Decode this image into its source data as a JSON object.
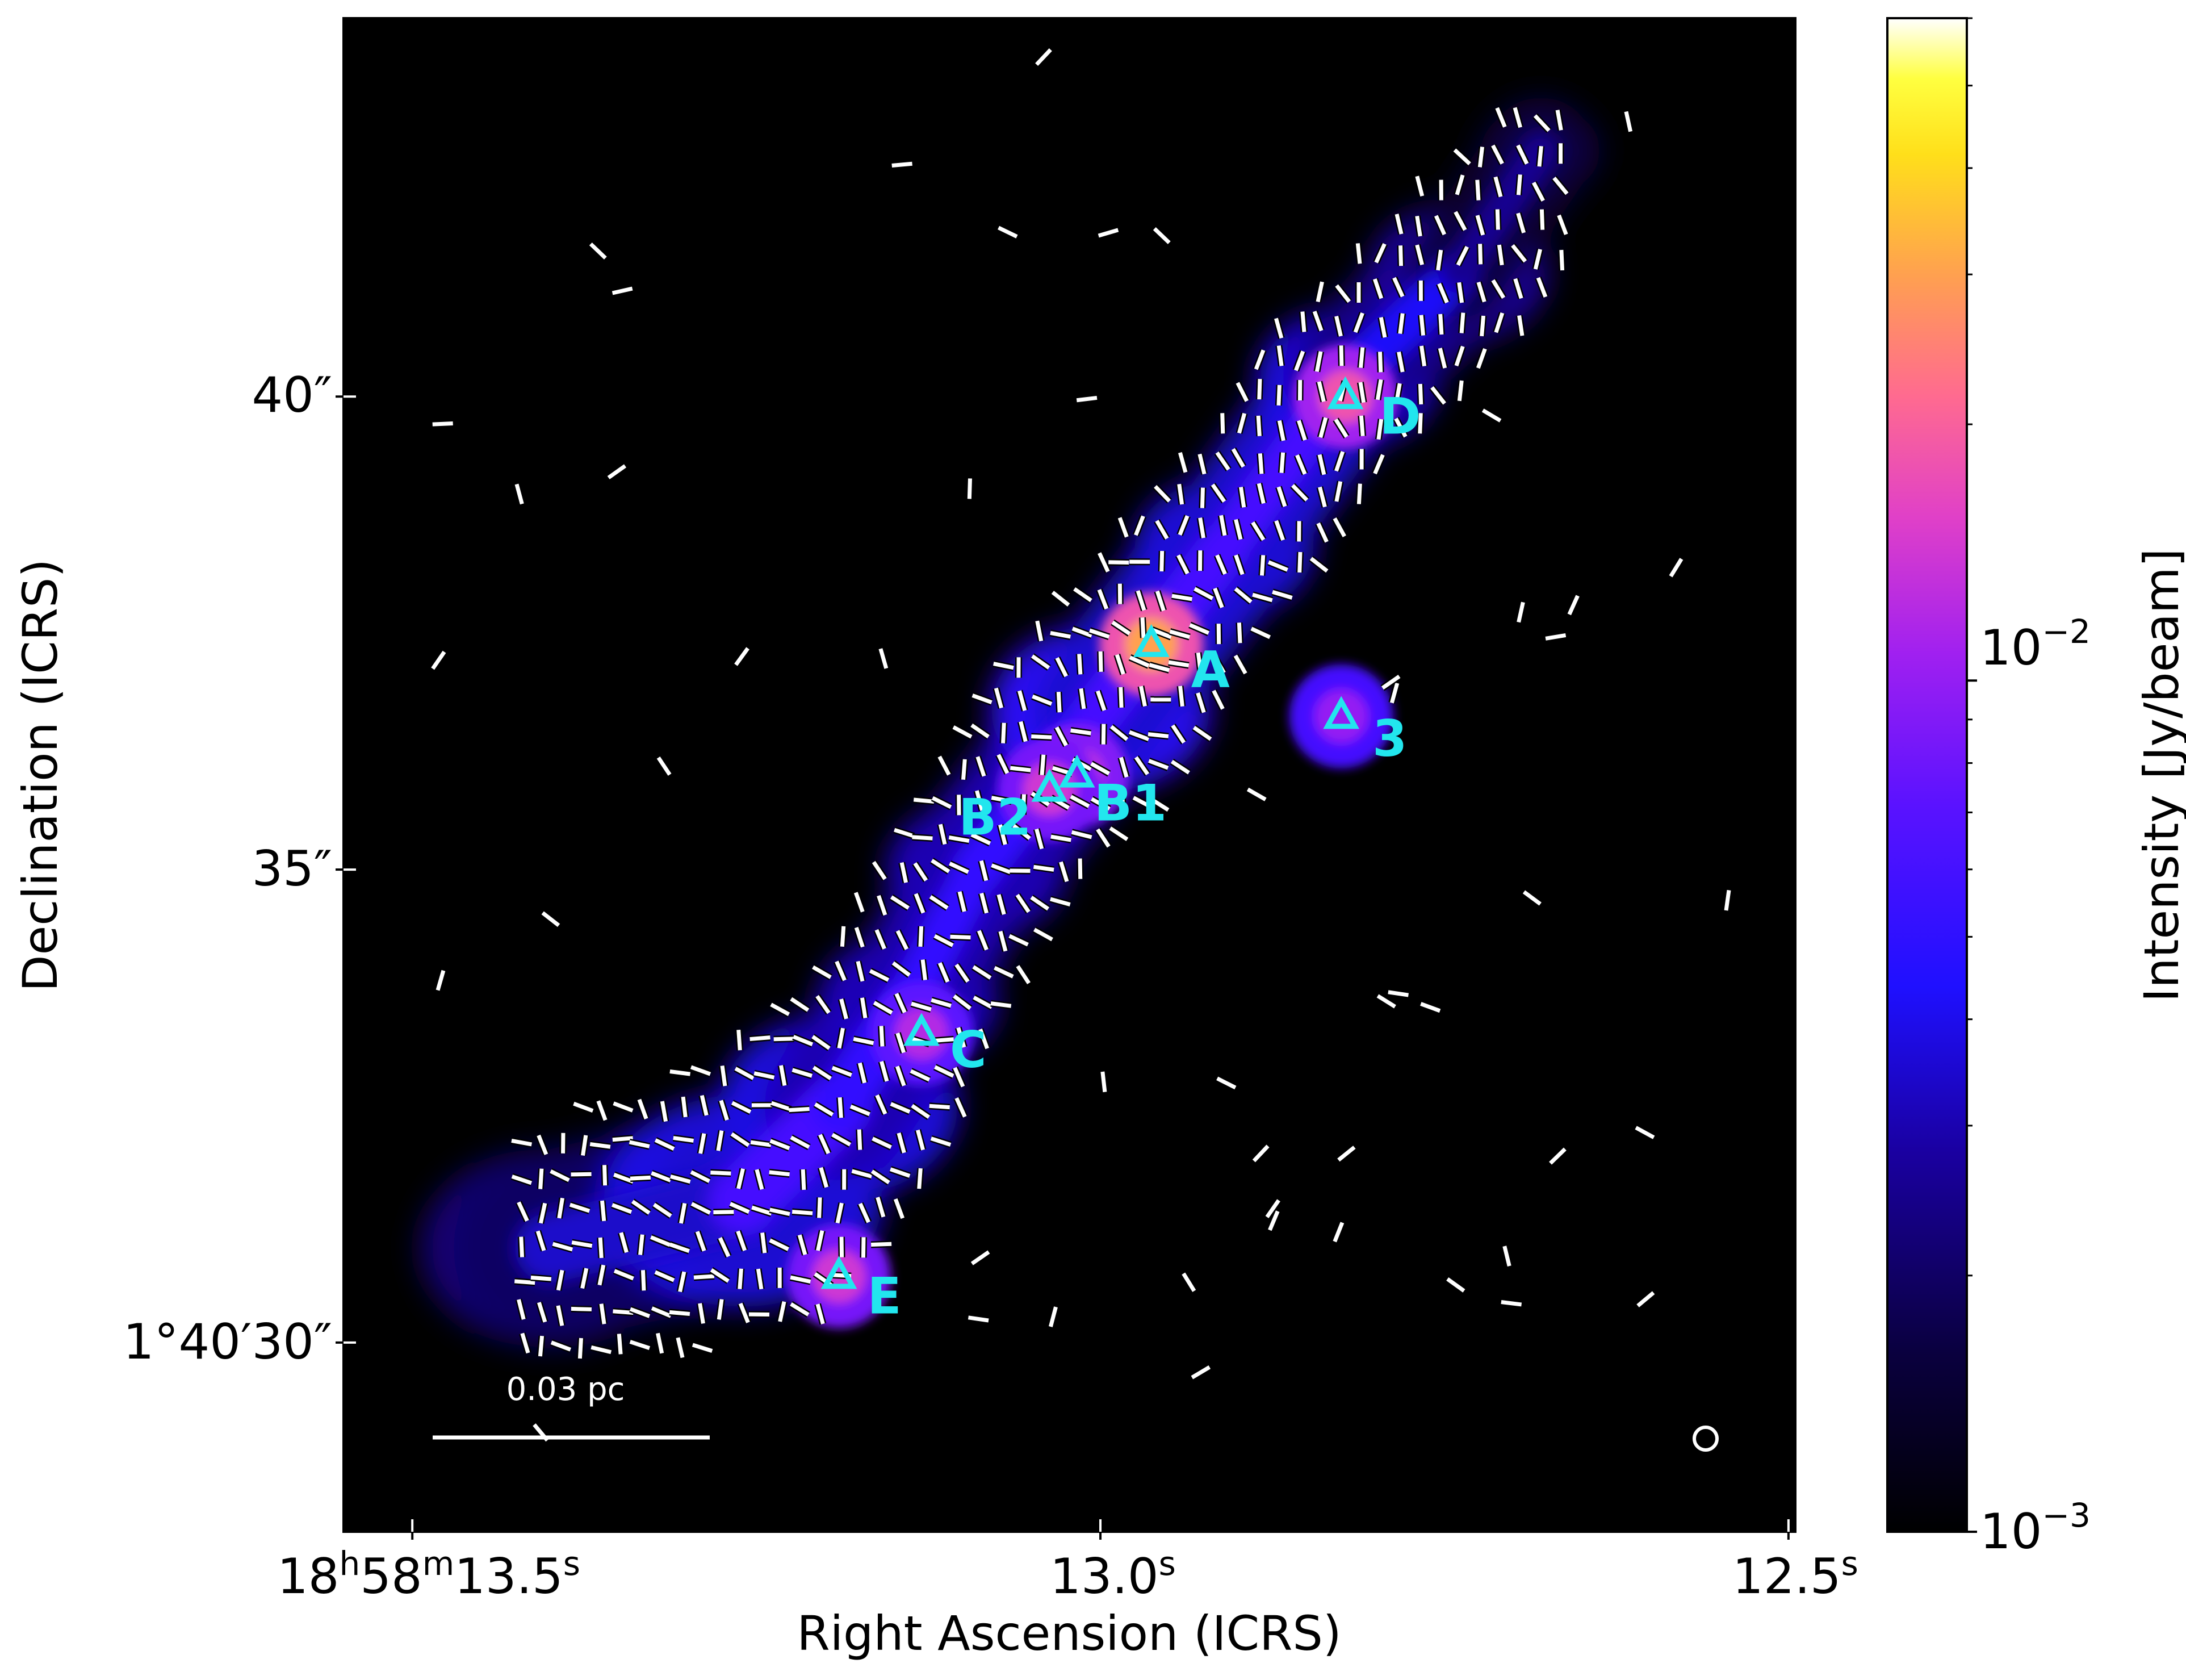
{
  "chart_data": {
    "type": "heatmap",
    "colormap": "gnuplot2",
    "xlabel": "Right Ascension (ICRS)",
    "ylabel": "Declination (ICRS)",
    "colorbar_label": "Intensity [Jy/beam]",
    "colorbar": {
      "scale": "log",
      "range": [
        0.001,
        0.06
      ],
      "tick_labels": [
        {
          "value": 0.01,
          "base": "10",
          "exponent": "−2"
        },
        {
          "value": 0.001,
          "base": "10",
          "exponent": "−3"
        }
      ]
    },
    "xaxis": {
      "unit": "s (RA)",
      "range": [
        13.55,
        12.495
      ],
      "ticks": [
        {
          "value": 13.5,
          "parts": [
            "18",
            "h",
            "58",
            "m",
            "13.5",
            "s"
          ]
        },
        {
          "value": 13.0,
          "parts": [
            "13.0",
            "s"
          ]
        },
        {
          "value": 12.5,
          "parts": [
            "12.5",
            "s"
          ]
        }
      ]
    },
    "yaxis": {
      "unit": "arcsec (Dec offset)",
      "range": [
        28.0,
        44.0
      ],
      "ticks": [
        {
          "value": 40,
          "text": "40″"
        },
        {
          "value": 35,
          "text": "35″"
        },
        {
          "value": 30,
          "text": "1°40′30″"
        }
      ]
    },
    "sources": [
      {
        "label": "A",
        "ra": 12.963,
        "dec": 37.38,
        "peak": 0.03
      },
      {
        "label": "B1",
        "ra": 13.017,
        "dec": 36.0,
        "peak": 0.015
      },
      {
        "label": "B2",
        "ra": 13.037,
        "dec": 35.85,
        "peak": 0.014
      },
      {
        "label": "C",
        "ra": 13.13,
        "dec": 33.27,
        "peak": 0.012
      },
      {
        "label": "D",
        "ra": 12.822,
        "dec": 40.0,
        "peak": 0.018
      },
      {
        "label": "E",
        "ra": 13.19,
        "dec": 30.7,
        "peak": 0.014
      },
      {
        "label": "3",
        "ra": 12.825,
        "dec": 36.62,
        "peak": 0.01
      }
    ],
    "filament_spine": [
      {
        "ra": 13.4,
        "dec": 31.0,
        "width": 1.3,
        "peak": 0.004
      },
      {
        "ra": 13.26,
        "dec": 31.5,
        "width": 1.4,
        "peak": 0.007
      },
      {
        "ra": 13.19,
        "dec": 32.5,
        "width": 1.2,
        "peak": 0.007
      },
      {
        "ra": 13.14,
        "dec": 33.6,
        "width": 0.9,
        "peak": 0.006
      },
      {
        "ra": 13.09,
        "dec": 35.0,
        "width": 0.9,
        "peak": 0.006
      },
      {
        "ra": 13.0,
        "dec": 36.7,
        "width": 1.1,
        "peak": 0.009
      },
      {
        "ra": 12.91,
        "dec": 38.4,
        "width": 0.9,
        "peak": 0.007
      },
      {
        "ra": 12.82,
        "dec": 40.2,
        "width": 0.9,
        "peak": 0.008
      },
      {
        "ra": 12.74,
        "dec": 41.3,
        "width": 0.9,
        "peak": 0.005
      },
      {
        "ra": 12.68,
        "dec": 42.6,
        "width": 0.6,
        "peak": 0.003
      }
    ],
    "scale_bar": {
      "label": "0.03 pc"
    },
    "beam": {
      "shape": "circle"
    },
    "polarization_vectors": "B-field segments overlaid (white, black edge)"
  }
}
